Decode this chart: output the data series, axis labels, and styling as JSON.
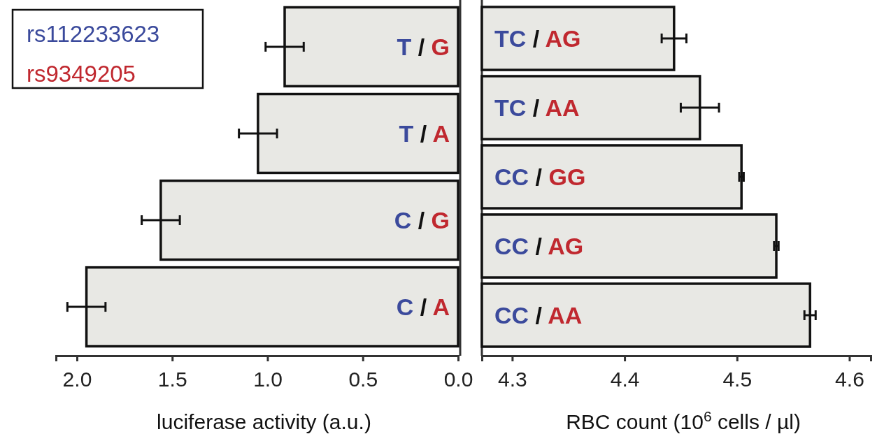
{
  "chart_data": [
    {
      "type": "bar",
      "orientation": "horizontal",
      "xlabel": "luciferase activity (a.u.)",
      "categories": [
        "T / G",
        "T / A",
        "C / G",
        "C / A"
      ],
      "series": [
        {
          "color": "#e8e8e4",
          "values": [
            0.91,
            1.05,
            1.56,
            1.95
          ],
          "errors": [
            0.1,
            0.1,
            0.1,
            0.1
          ]
        }
      ],
      "xlim": [
        2.11,
        0
      ],
      "xticks": [
        {
          "value": 2,
          "label": "2.0"
        },
        1.5,
        {
          "value": 1,
          "label": "1.0"
        },
        0.5,
        {
          "value": 0,
          "label": "0.0"
        }
      ],
      "tick_labels": "x",
      "grid": false,
      "annotations": [
        "rs112233623",
        "rs9349205"
      ]
    },
    {
      "type": "bar",
      "orientation": "horizontal",
      "xlabel": "RBC count (10$^{6}$ cells / µl)",
      "categories": [
        "TC / AG",
        "TC / AA",
        "CC / GG",
        "CC / AG",
        "CC / AA"
      ],
      "series": [
        {
          "color": "#e8e8e4",
          "values": [
            4.444,
            4.467,
            4.504,
            4.535,
            4.565
          ],
          "errors": [
            0.011,
            0.017,
            0.002,
            0.002,
            0.005
          ]
        }
      ],
      "xlim": [
        4.273,
        4.619
      ],
      "xticks": [
        4.3,
        4.4,
        4.5,
        4.6
      ],
      "tick_labels": "x",
      "grid": false
    }
  ]
}
